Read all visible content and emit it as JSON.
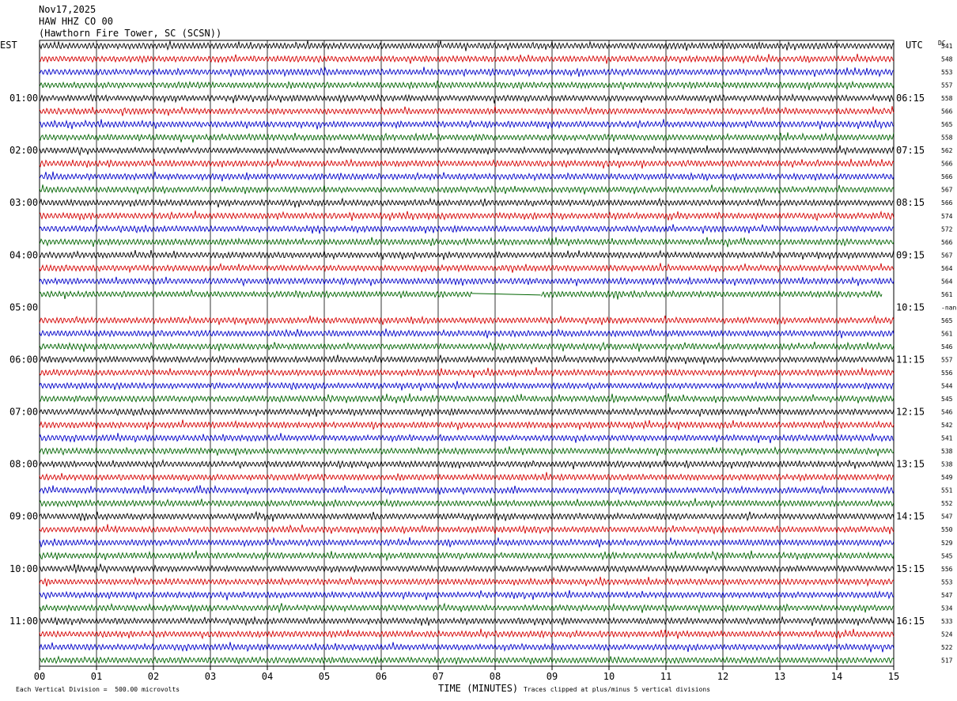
{
  "header": {
    "date": "Nov17,2025",
    "channel": "HAW HHZ CO 00",
    "station": "(Hawthorn Fire Tower, SC (SCSN))"
  },
  "left_timezone": "EST",
  "right_timezone": "UTC",
  "dc_header": "DC",
  "footer": {
    "scale_note": "Each Vertical Division =  500.00 microvolts",
    "xlabel": "TIME (MINUTES)",
    "clip_note": "Traces clipped at plus/minus 5 vertical divisions"
  },
  "chart_data": {
    "type": "line",
    "title": "Nov17,2025 HAW HHZ CO 00 (Hawthorn Fire Tower, SC (SCSN))",
    "xlabel": "TIME (MINUTES)",
    "xlim": [
      0,
      15
    ],
    "x_ticks": [
      "00",
      "01",
      "02",
      "03",
      "04",
      "05",
      "06",
      "07",
      "08",
      "09",
      "10",
      "11",
      "12",
      "13",
      "14",
      "15"
    ],
    "grid": "vertical lines at each minute",
    "trace_colors": [
      "#000000",
      "#d40000",
      "#0000c8",
      "#006400"
    ],
    "minutes_per_trace": 15,
    "left_hour_labels": [
      "01:00",
      "02:00",
      "03:00",
      "04:00",
      "05:00",
      "06:00",
      "07:00",
      "08:00",
      "09:00",
      "10:00",
      "11:00"
    ],
    "right_hour_labels": [
      "06:15",
      "07:15",
      "08:15",
      "09:15",
      "10:15",
      "11:15",
      "12:15",
      "13:15",
      "14:15",
      "15:15",
      "16:15"
    ],
    "dc_values": [
      "541",
      "548",
      "553",
      "557",
      "558",
      "566",
      "565",
      "558",
      "562",
      "566",
      "566",
      "567",
      "566",
      "574",
      "572",
      "566",
      "567",
      "564",
      "564",
      "561",
      "-nan",
      "565",
      "561",
      "546",
      "557",
      "556",
      "544",
      "545",
      "546",
      "542",
      "541",
      "538",
      "538",
      "549",
      "551",
      "552",
      "547",
      "550",
      "529",
      "545",
      "556",
      "553",
      "547",
      "534",
      "533",
      "524",
      "522",
      "517"
    ],
    "gaps": [
      {
        "trace": 19,
        "from_min": 7.6,
        "to_min": 8.8
      },
      {
        "trace": 19,
        "from_min": 14.8,
        "to_min": 15
      },
      {
        "trace": 20,
        "from_min": 0,
        "to_min": 15
      }
    ]
  }
}
